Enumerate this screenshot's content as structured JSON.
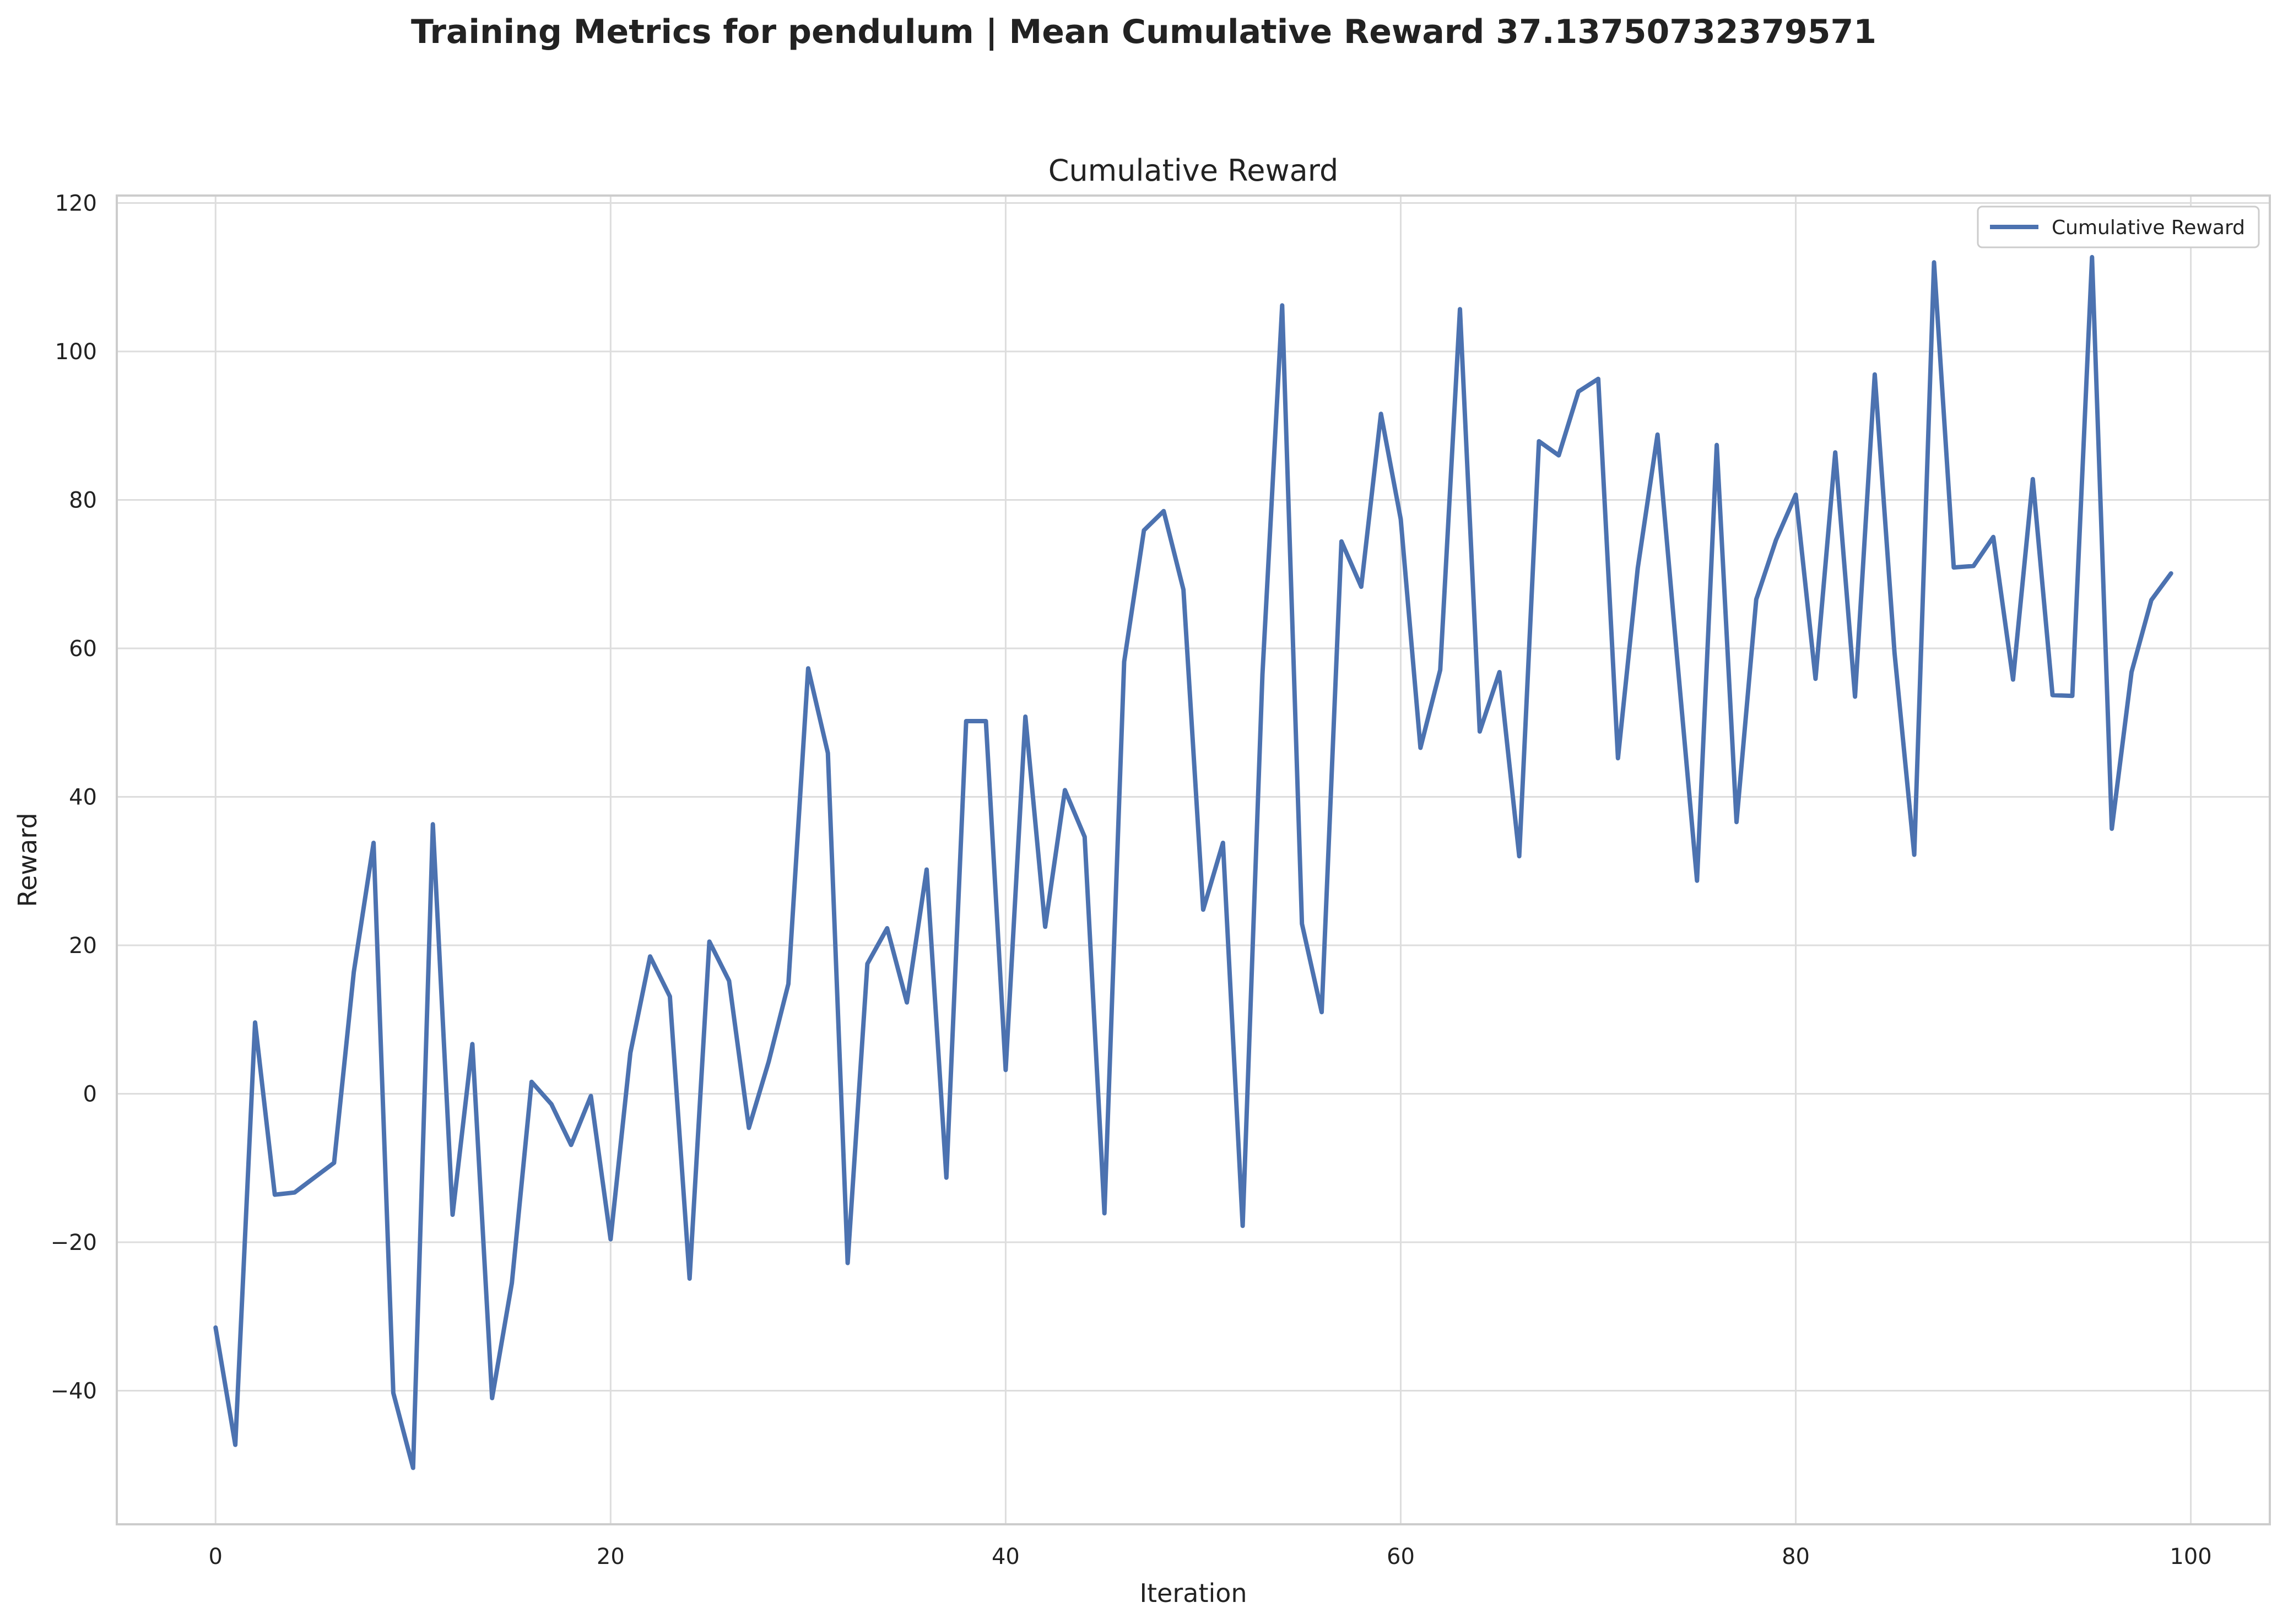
{
  "suptitle": "Training Metrics for pendulum | Mean Cumulative Reward 37.13750732379571",
  "chart_data": {
    "type": "line",
    "title": "Cumulative Reward",
    "xlabel": "Iteration",
    "ylabel": "Reward",
    "xlim": [
      -5,
      104
    ],
    "ylim": [
      -58,
      121
    ],
    "xticks": [
      0,
      20,
      40,
      60,
      80,
      100
    ],
    "xtick_labels": [
      "0",
      "20",
      "40",
      "60",
      "80",
      "100"
    ],
    "yticks": [
      -40,
      -20,
      0,
      20,
      40,
      60,
      80,
      100,
      120
    ],
    "ytick_labels": [
      "−40",
      "−20",
      "0",
      "20",
      "40",
      "60",
      "80",
      "100",
      "120"
    ],
    "grid": true,
    "legend_position": "top-right",
    "series": [
      {
        "name": "Cumulative Reward",
        "color": "#4c72b0",
        "x": [
          0,
          1,
          2,
          3,
          4,
          5,
          6,
          7,
          8,
          9,
          10,
          11,
          12,
          13,
          14,
          15,
          16,
          17,
          18,
          19,
          20,
          21,
          22,
          23,
          24,
          25,
          26,
          27,
          28,
          29,
          30,
          31,
          32,
          33,
          34,
          35,
          36,
          37,
          38,
          39,
          40,
          41,
          42,
          43,
          44,
          45,
          46,
          47,
          48,
          49,
          50,
          51,
          52,
          53,
          54,
          55,
          56,
          57,
          58,
          59,
          60,
          61,
          62,
          63,
          64,
          65,
          66,
          67,
          68,
          69,
          70,
          71,
          72,
          73,
          74,
          75,
          76,
          77,
          78,
          79,
          80,
          81,
          82,
          83,
          84,
          85,
          86,
          87,
          88,
          89,
          90,
          91,
          92,
          93,
          94,
          95,
          96,
          97,
          98,
          99
        ],
        "values": [
          -31.5,
          -47.3,
          9.6,
          -13.6,
          -13.3,
          -11.3,
          -9.3,
          16.4,
          33.8,
          -40.3,
          -50.4,
          36.3,
          -16.3,
          6.7,
          -41.0,
          -25.5,
          1.6,
          -1.4,
          -6.9,
          -0.3,
          -19.6,
          5.5,
          18.5,
          13.1,
          -24.9,
          20.5,
          15.2,
          -4.6,
          4.3,
          14.8,
          57.3,
          45.9,
          -22.8,
          17.5,
          22.3,
          12.3,
          30.2,
          -11.3,
          50.2,
          50.2,
          3.2,
          50.8,
          22.5,
          40.9,
          34.6,
          -16.1,
          58.2,
          75.9,
          78.5,
          67.9,
          24.8,
          33.8,
          -17.8,
          56.5,
          106.2,
          22.9,
          11.0,
          74.4,
          68.3,
          91.6,
          77.4,
          46.6,
          57.1,
          105.7,
          48.8,
          56.8,
          32.0,
          87.9,
          86.0,
          94.6,
          96.3,
          45.2,
          70.8,
          88.8,
          58.5,
          28.7,
          87.4,
          36.6,
          66.6,
          74.6,
          80.7,
          55.9,
          86.4,
          53.5,
          96.9,
          59.4,
          32.2,
          112.0,
          70.9,
          71.1,
          75.0,
          55.8,
          82.8,
          53.7,
          53.6,
          112.7,
          35.7,
          56.8,
          66.5,
          70.1
        ]
      }
    ]
  }
}
